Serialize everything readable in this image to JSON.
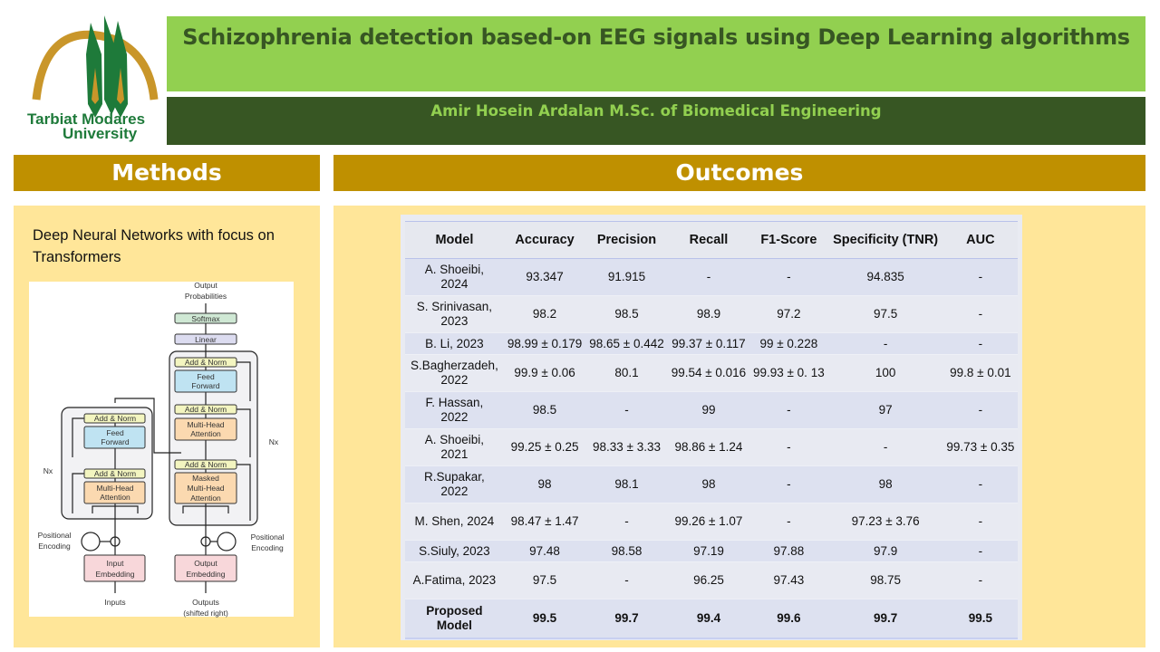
{
  "logo": {
    "line1": "Tarbiat Modares",
    "line2": "University"
  },
  "header": {
    "title": "Schizophrenia detection based-on EEG signals using Deep Learning algorithms",
    "subtitle": "Amir Hosein Ardalan M.Sc. of Biomedical Engineering"
  },
  "colors": {
    "title_bg": "#92d050",
    "subtitle_bg": "#375623",
    "section_bg": "#bf9000",
    "panel_bg": "#ffe699"
  },
  "methods": {
    "heading": "Methods",
    "text": "Deep Neural Networks with focus on Transformers",
    "diagram": {
      "output_probabilities": [
        "Output",
        "Probabilities"
      ],
      "softmax": "Softmax",
      "linear": "Linear",
      "add_norm": "Add & Norm",
      "feed_forward": [
        "Feed",
        "Forward"
      ],
      "multi_head": [
        "Multi-Head",
        "Attention"
      ],
      "masked": [
        "Masked",
        "Multi-Head",
        "Attention"
      ],
      "nx": "Nx",
      "positional": [
        "Positional",
        "Encoding"
      ],
      "input_embedding": [
        "Input",
        "Embedding"
      ],
      "output_embedding": [
        "Output",
        "Embedding"
      ],
      "inputs": "Inputs",
      "outputs": [
        "Outputs",
        "(shifted right)"
      ]
    }
  },
  "outcomes": {
    "heading": "Outcomes",
    "columns": [
      "Model",
      "Accuracy",
      "Precision",
      "Recall",
      "F1-Score",
      "Specificity (TNR)",
      "AUC"
    ],
    "rows": [
      [
        "A. Shoeibi, 2024",
        "93.347",
        "91.915",
        "-",
        "-",
        "94.835",
        "-"
      ],
      [
        "S. Srinivasan, 2023",
        "98.2",
        "98.5",
        "98.9",
        "97.2",
        "97.5",
        "-"
      ],
      [
        "B. Li, 2023",
        "98.99 ± 0.179",
        "98.65 ± 0.442",
        "99.37 ± 0.117",
        "99 ± 0.228",
        "-",
        "-"
      ],
      [
        "S.Bagherzadeh, 2022",
        "99.9 ± 0.06",
        "80.1",
        "99.54 ± 0.016",
        "99.93 ± 0. 13",
        "100",
        "99.8 ± 0.01"
      ],
      [
        "F. Hassan, 2022",
        "98.5",
        "-",
        "99",
        "-",
        "97",
        "-"
      ],
      [
        "A. Shoeibi, 2021",
        "99.25 ± 0.25",
        "98.33 ± 3.33",
        "98.86 ± 1.24",
        "-",
        "-",
        "99.73 ± 0.35"
      ],
      [
        "R.Supakar, 2022",
        "98",
        "98.1",
        "98",
        "-",
        "98",
        "-"
      ],
      [
        "M. Shen, 2024",
        "98.47 ± 1.47",
        "-",
        "99.26 ± 1.07",
        "-",
        "97.23 ± 3.76",
        "-"
      ],
      [
        "S.Siuly, 2023",
        "97.48",
        "98.58",
        "97.19",
        "97.88",
        "97.9",
        "-"
      ],
      [
        "A.Fatima, 2023",
        "97.5",
        "-",
        "96.25",
        "97.43",
        "98.75",
        "-"
      ],
      [
        "Proposed Model",
        "99.5",
        "99.7",
        "99.4",
        "99.6",
        "99.7",
        "99.5"
      ]
    ]
  }
}
